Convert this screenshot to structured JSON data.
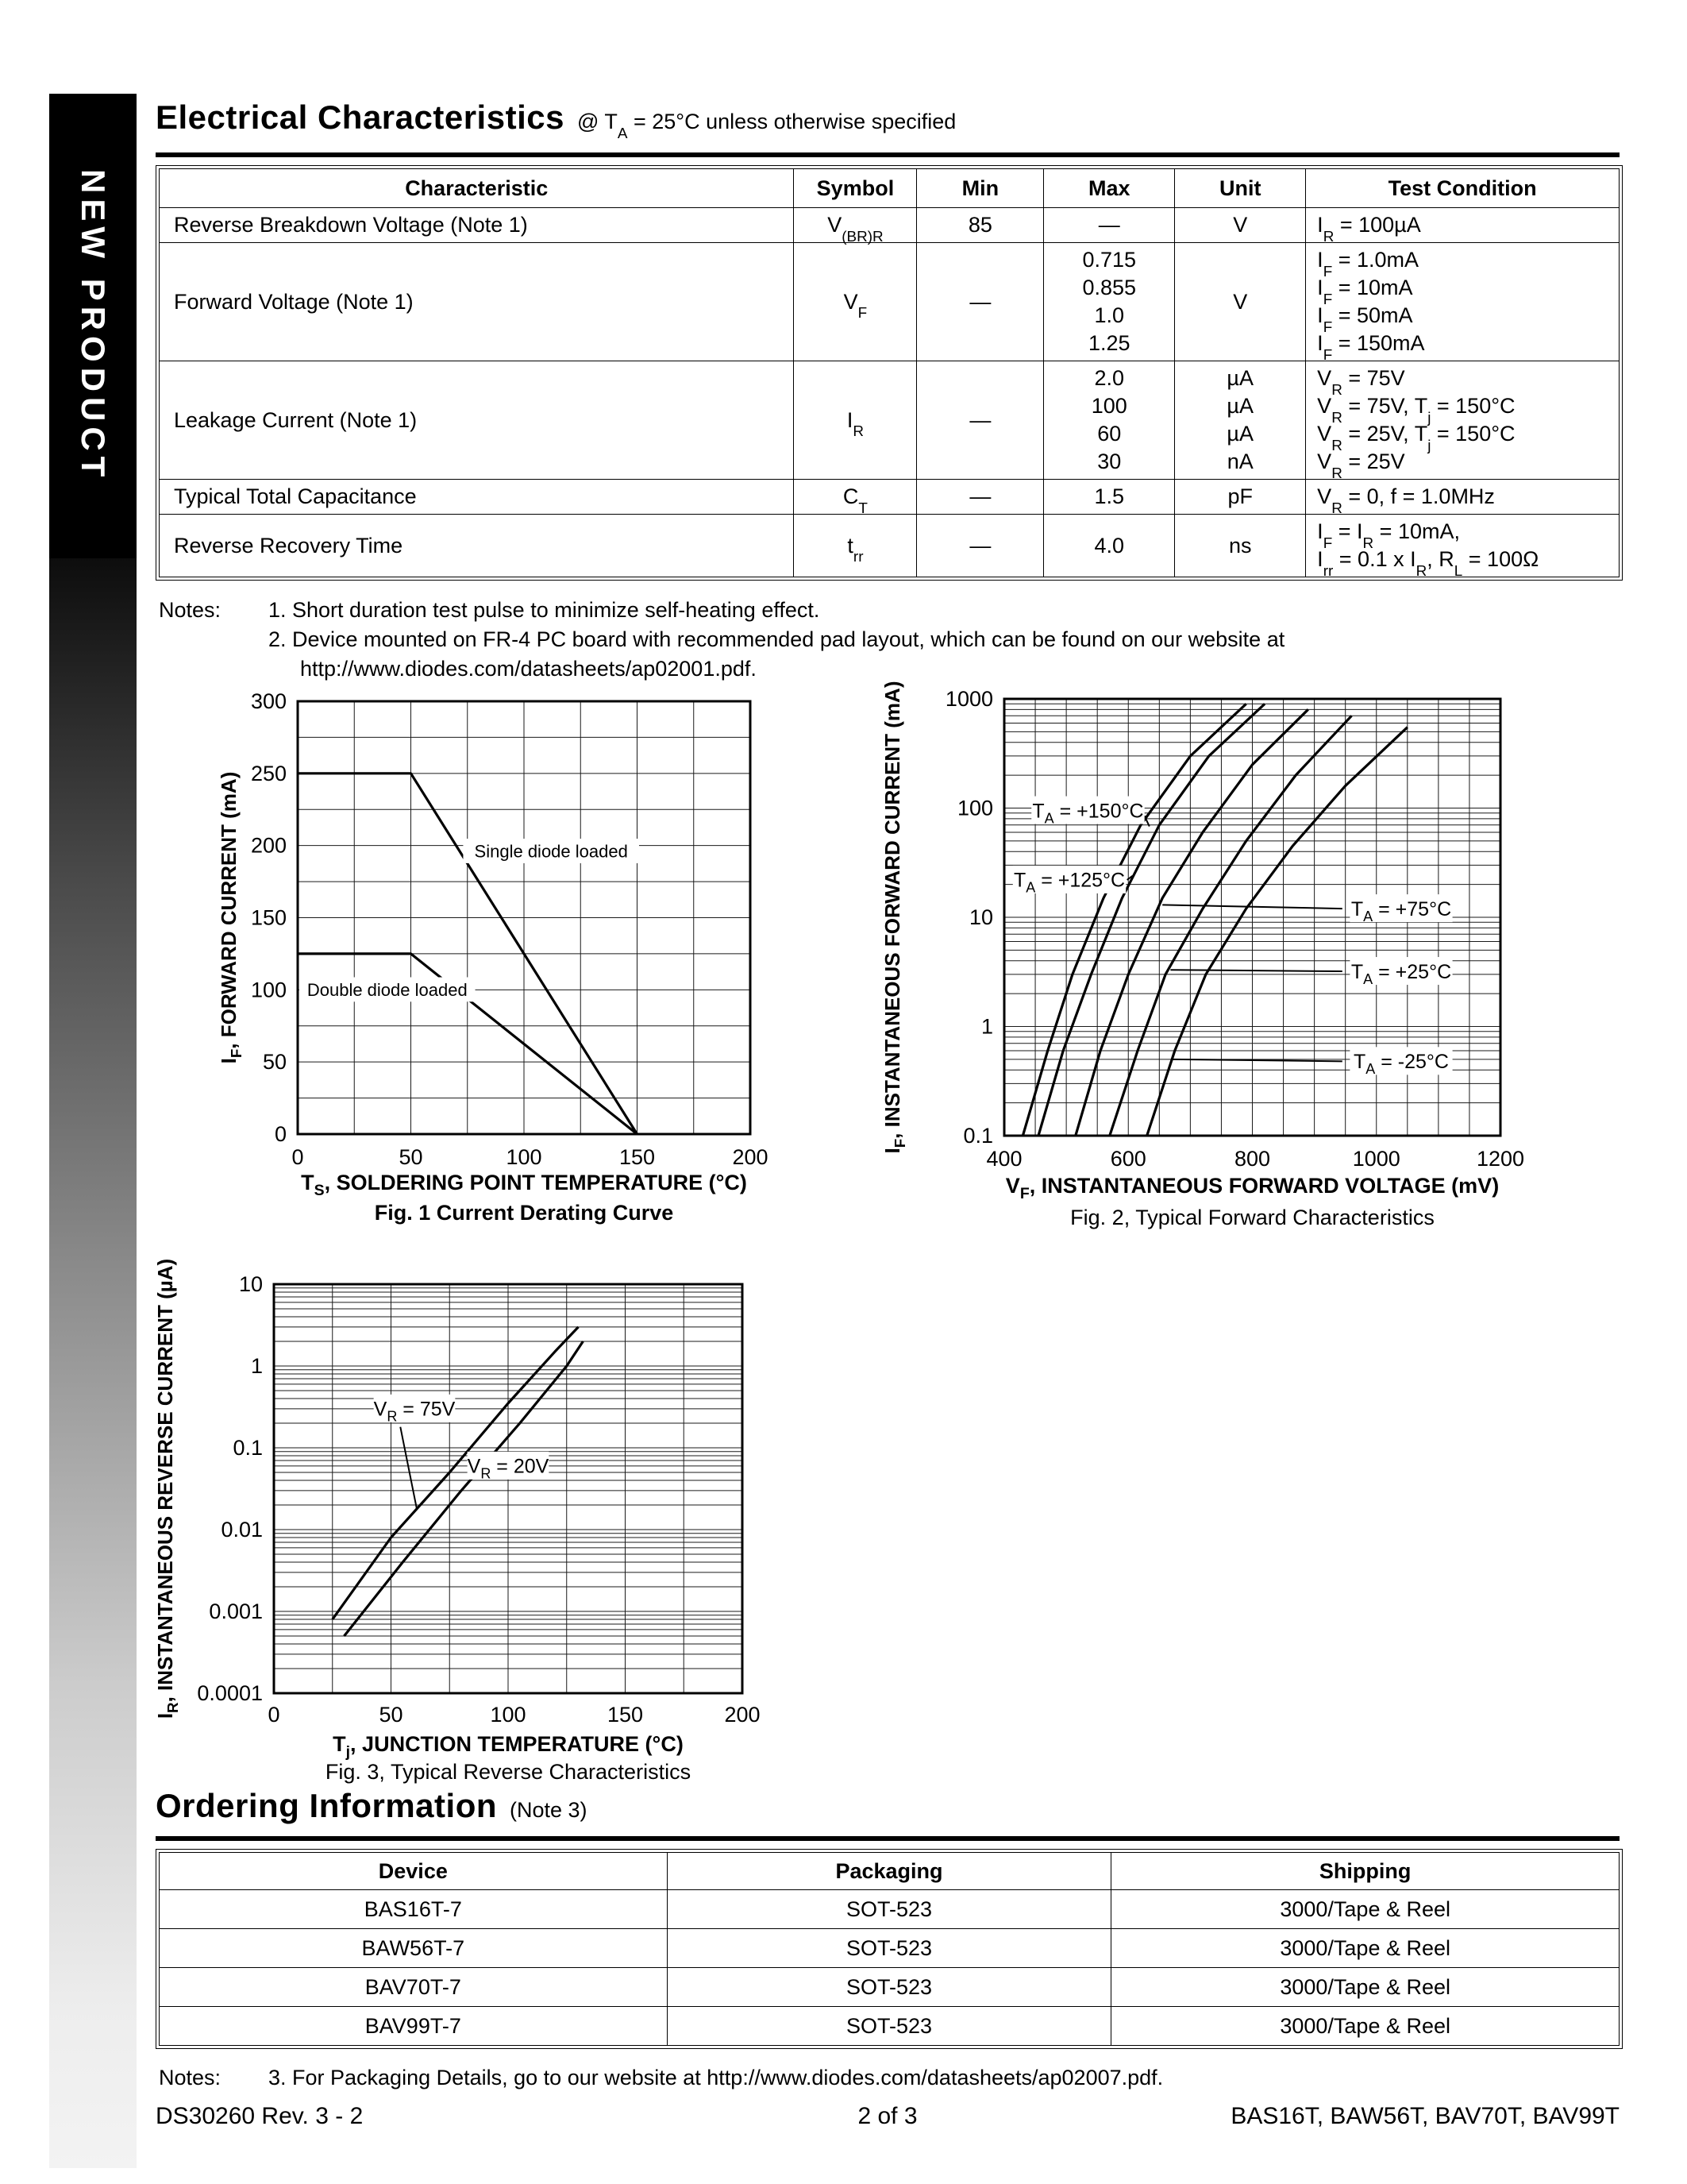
{
  "sidebar": {
    "label": "NEW PRODUCT"
  },
  "header": {
    "title": "Electrical Characteristics",
    "subtitle": "@ T_{A} = 25°C unless otherwise specified"
  },
  "elec_table": {
    "columns": [
      "Characteristic",
      "Symbol",
      "Min",
      "Max",
      "Unit",
      "Test Condition"
    ],
    "rows": [
      {
        "characteristic": "Reverse Breakdown Voltage (Note 1)",
        "symbol": "V_{(BR)R}",
        "min": "85",
        "max": "—",
        "unit": "V",
        "condition": "I_{R} = 100µA"
      },
      {
        "characteristic": "Forward Voltage (Note 1)",
        "symbol": "V_{F}",
        "min": "—",
        "max": "0.715\n0.855\n1.0\n1.25",
        "unit": "V",
        "condition": "I_{F} = 1.0mA\nI_{F} = 10mA\nI_{F} = 50mA\nI_{F} = 150mA"
      },
      {
        "characteristic": "Leakage Current (Note 1)",
        "symbol": "I_{R}",
        "min": "—",
        "max": "2.0\n100\n60\n30",
        "unit": "µA\nµA\nµA\nnA",
        "condition": "V_{R} = 75V\nV_{R} = 75V, T_{j} = 150°C\nV_{R} = 25V, T_{j} = 150°C\nV_{R} = 25V"
      },
      {
        "characteristic": "Typical Total Capacitance",
        "symbol": "C_{T}",
        "min": "—",
        "max": "1.5",
        "unit": "pF",
        "condition": "V_{R} = 0, f = 1.0MHz"
      },
      {
        "characteristic": "Reverse Recovery Time",
        "symbol": "t_{rr}",
        "min": "—",
        "max": "4.0",
        "unit": "ns",
        "condition": "I_{F} = I_{R} = 10mA,\nI_{rr} = 0.1 x I_{R}, R_{L} = 100Ω"
      }
    ]
  },
  "notes_elec": {
    "label": "Notes:",
    "items": [
      {
        "text": "1. Short duration test pulse to minimize self-heating effect.",
        "cont": false,
        "link": false
      },
      {
        "text": "2. Device mounted on FR-4 PC board with recommended pad layout, which can be found on our website at",
        "cont": false,
        "link": false
      },
      {
        "text": "http://www.diodes.com/datasheets/ap02001.pdf.",
        "cont": true,
        "link": true
      }
    ]
  },
  "chart_data": [
    {
      "id": "fig1",
      "type": "line",
      "title": "Fig. 1  Current Derating Curve",
      "xlabel": "T_{S}, SOLDERING POINT TEMPERATURE (°C)",
      "ylabel": "I_{F}, FORWARD CURRENT (mA)",
      "xlim": [
        0,
        200
      ],
      "ylim": [
        0,
        300
      ],
      "x_minor": 25,
      "y_minor": 25,
      "xticks": [
        0,
        50,
        100,
        150,
        200
      ],
      "xtick_labels": [
        "0",
        "50",
        "100",
        "150",
        "200"
      ],
      "yticks": [
        0,
        50,
        100,
        150,
        200,
        250,
        300
      ],
      "ytick_labels": [
        "0",
        "50",
        "100",
        "150",
        "200",
        "250",
        "300"
      ],
      "series": [
        {
          "name": "Single diode loaded",
          "points": [
            [
              0,
              250
            ],
            [
              50,
              250
            ],
            [
              150,
              0
            ]
          ]
        },
        {
          "name": "Double diode loaded",
          "points": [
            [
              0,
              125
            ],
            [
              50,
              125
            ],
            [
              150,
              0
            ]
          ]
        }
      ],
      "annotations": [
        {
          "text": "Single diode loaded",
          "x": 112,
          "y": 196
        },
        {
          "text": "Double diode loaded",
          "x": 30,
          "y": 100
        }
      ]
    },
    {
      "id": "fig2",
      "type": "line",
      "title": "Fig. 2, Typical Forward Characteristics",
      "xlabel": "V_{F}, INSTANTANEOUS FORWARD VOLTAGE (mV)",
      "ylabel": "I_{F}, INSTANTANEOUS FORWARD CURRENT (mA)",
      "xlim": [
        400,
        1200
      ],
      "ylim": [
        0.1,
        1000
      ],
      "ylog": true,
      "x_minor": 50,
      "xticks": [
        400,
        600,
        800,
        1000,
        1200
      ],
      "xtick_labels": [
        "400",
        "600",
        "800",
        "1000",
        "1200"
      ],
      "yticks": [
        1000,
        100,
        10,
        1,
        0.1
      ],
      "ytick_labels": [
        "1000",
        "100",
        "10",
        "1",
        "0.1"
      ],
      "series": [
        {
          "name": "T_{A} = +150°C",
          "points": [
            [
              430,
              0.1
            ],
            [
              470,
              0.6
            ],
            [
              510,
              3
            ],
            [
              560,
              15
            ],
            [
              620,
              70
            ],
            [
              700,
              300
            ],
            [
              790,
              900
            ]
          ]
        },
        {
          "name": "T_{A} = +125°C",
          "points": [
            [
              455,
              0.1
            ],
            [
              495,
              0.6
            ],
            [
              540,
              3
            ],
            [
              590,
              15
            ],
            [
              650,
              70
            ],
            [
              730,
              300
            ],
            [
              820,
              900
            ]
          ]
        },
        {
          "name": "T_{A} = +75°C",
          "points": [
            [
              515,
              0.1
            ],
            [
              555,
              0.6
            ],
            [
              600,
              3
            ],
            [
              655,
              15
            ],
            [
              720,
              60
            ],
            [
              800,
              250
            ],
            [
              890,
              800
            ]
          ]
        },
        {
          "name": "T_{A} = +25°C",
          "points": [
            [
              570,
              0.1
            ],
            [
              615,
              0.6
            ],
            [
              660,
              3
            ],
            [
              720,
              12
            ],
            [
              790,
              50
            ],
            [
              870,
              200
            ],
            [
              960,
              700
            ]
          ]
        },
        {
          "name": "T_{A} = -25°C",
          "points": [
            [
              630,
              0.1
            ],
            [
              675,
              0.6
            ],
            [
              725,
              3
            ],
            [
              790,
              12
            ],
            [
              865,
              45
            ],
            [
              950,
              160
            ],
            [
              1050,
              550
            ]
          ]
        }
      ],
      "annotations": [
        {
          "text": "T_{A} = +150°C",
          "x": 535,
          "y": 95,
          "leader": [
            626,
            85,
            634,
            68
          ]
        },
        {
          "text": "T_{A} = +125°C",
          "x": 505,
          "y": 22,
          "leader": [
            598,
            22,
            607,
            24
          ]
        },
        {
          "text": "T_{A} = +75°C",
          "x": 1040,
          "y": 12,
          "leader": [
            945,
            12,
            655,
            13
          ]
        },
        {
          "text": "T_{A} = +25°C",
          "x": 1040,
          "y": 3.2,
          "leader": [
            945,
            3.2,
            668,
            3.3
          ]
        },
        {
          "text": "T_{A} = -25°C",
          "x": 1040,
          "y": 0.48,
          "leader": [
            945,
            0.48,
            672,
            0.5
          ]
        }
      ]
    },
    {
      "id": "fig3",
      "type": "line",
      "title": "Fig. 3, Typical Reverse Characteristics",
      "xlabel": "T_{j}, JUNCTION TEMPERATURE (°C)",
      "ylabel": "I_{R}, INSTANTANEOUS REVERSE CURRENT (µA)",
      "xlim": [
        0,
        200
      ],
      "ylim": [
        0.0001,
        10
      ],
      "ylog": true,
      "x_minor": 25,
      "xticks": [
        0,
        50,
        100,
        150,
        200
      ],
      "xtick_labels": [
        "0",
        "50",
        "100",
        "150",
        "200"
      ],
      "yticks": [
        10,
        1,
        0.1,
        0.01,
        0.001,
        0.0001
      ],
      "ytick_labels": [
        "10",
        "1",
        "0.1",
        "0.01",
        "0.001",
        "0.0001"
      ],
      "series": [
        {
          "name": "V_{R} = 75V",
          "points": [
            [
              25,
              0.0008
            ],
            [
              50,
              0.008
            ],
            [
              75,
              0.05
            ],
            [
              100,
              0.35
            ],
            [
              120,
              1.5
            ],
            [
              130,
              3
            ]
          ]
        },
        {
          "name": "V_{R} = 20V",
          "points": [
            [
              30,
              0.0005
            ],
            [
              55,
              0.004
            ],
            [
              80,
              0.03
            ],
            [
              105,
              0.2
            ],
            [
              125,
              1.0
            ],
            [
              132,
              2
            ]
          ]
        }
      ],
      "annotations": [
        {
          "text": "V_{R} = 75V",
          "x": 60,
          "y": 0.3,
          "leader": [
            54,
            0.18,
            61,
            0.018
          ]
        },
        {
          "text": "V_{R} = 20V",
          "x": 100,
          "y": 0.06,
          "leader": [
            91,
            0.042,
            85,
            0.045
          ]
        }
      ]
    }
  ],
  "ordering": {
    "title": "Ordering Information",
    "note": "(Note 3)",
    "columns": [
      "Device",
      "Packaging",
      "Shipping"
    ],
    "rows": [
      [
        "BAS16T-7",
        "SOT-523",
        "3000/Tape & Reel"
      ],
      [
        "BAW56T-7",
        "SOT-523",
        "3000/Tape & Reel"
      ],
      [
        "BAV70T-7",
        "SOT-523",
        "3000/Tape & Reel"
      ],
      [
        "BAV99T-7",
        "SOT-523",
        "3000/Tape & Reel"
      ]
    ]
  },
  "notes_order": {
    "label": "Notes:",
    "text": "3. For Packaging Details, go to our website at http://www.diodes.com/datasheets/ap02007.pdf."
  },
  "footer": {
    "left": "DS30260 Rev. 3 - 2",
    "center": "2 of 3",
    "right": "BAS16T, BAW56T, BAV70T, BAV99T"
  }
}
